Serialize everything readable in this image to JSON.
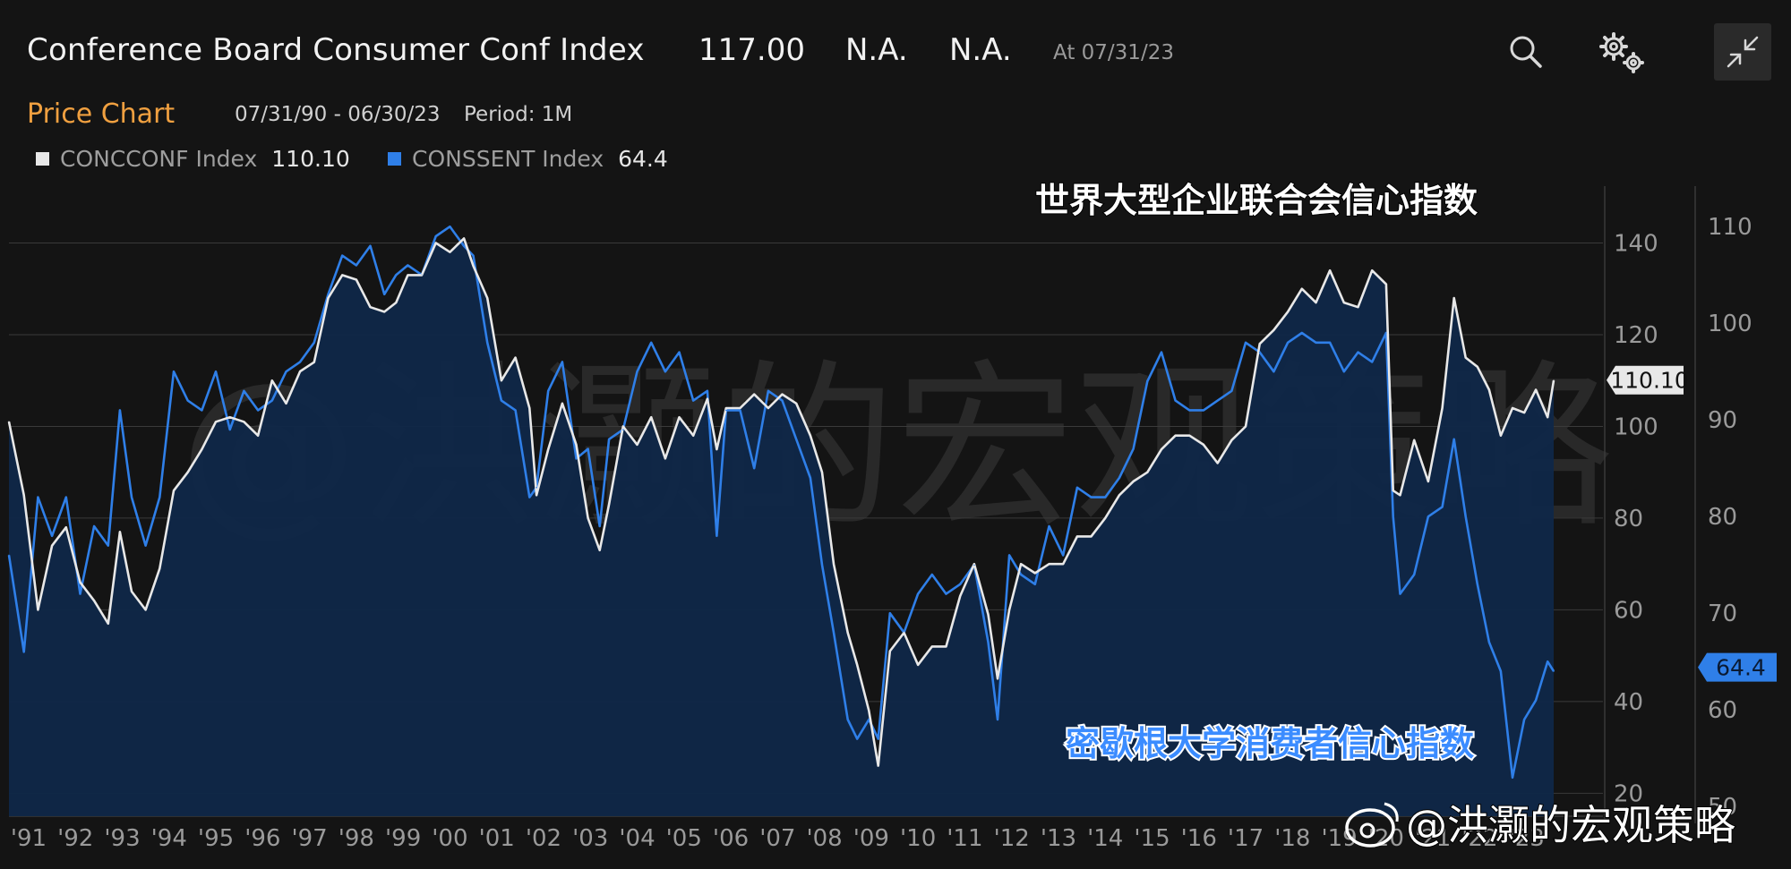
{
  "header": {
    "title": "Conference Board Consumer Conf Index",
    "last": "117.00",
    "change": "N.A.",
    "pct_change": "N.A.",
    "as_of": "At 07/31/23"
  },
  "subheader": {
    "tab": "Price Chart",
    "date_range": "07/31/90 - 06/30/23",
    "period": "Period: 1M"
  },
  "icons": {
    "search": "search-icon",
    "settings": "gear-icon",
    "collapse": "collapse-icon"
  },
  "colors": {
    "conf": "#e8e8e8",
    "sent": "#2f7fe8",
    "accent": "#f0a040",
    "area": "#0f2748"
  },
  "chart_data": {
    "type": "line",
    "left_axis": {
      "ticks": [
        20,
        40,
        60,
        80,
        100,
        120,
        140
      ],
      "range": [
        15,
        152
      ]
    },
    "right_axis": {
      "ticks": [
        50,
        60,
        70,
        80,
        90,
        100,
        110
      ],
      "range": [
        49,
        114
      ]
    },
    "x_ticks": [
      "'91",
      "'92",
      "'93",
      "'94",
      "'95",
      "'96",
      "'97",
      "'98",
      "'99",
      "'00",
      "'01",
      "'02",
      "'03",
      "'04",
      "'05",
      "'06",
      "'07",
      "'08",
      "'09",
      "'10",
      "'11",
      "'12",
      "'13",
      "'14",
      "'15",
      "'16",
      "'17",
      "'18",
      "'19",
      "'20",
      "'21",
      "'22",
      "'23"
    ],
    "series": [
      {
        "name": "CONCCONF Index",
        "last_value": "110.10",
        "axis": "left",
        "x": [
          1990.58,
          1990.9,
          1991.2,
          1991.5,
          1991.8,
          1992.1,
          1992.4,
          1992.7,
          1992.95,
          1993.2,
          1993.5,
          1993.8,
          1994.1,
          1994.4,
          1994.7,
          1995.0,
          1995.3,
          1995.6,
          1995.9,
          1996.2,
          1996.5,
          1996.8,
          1997.1,
          1997.4,
          1997.7,
          1998.0,
          1998.3,
          1998.6,
          1998.85,
          1999.1,
          1999.4,
          1999.7,
          2000.0,
          2000.3,
          2000.5,
          2000.8,
          2001.1,
          2001.4,
          2001.7,
          2001.85,
          2002.1,
          2002.4,
          2002.7,
          2002.95,
          2003.2,
          2003.4,
          2003.7,
          2004.0,
          2004.3,
          2004.6,
          2004.9,
          2005.2,
          2005.5,
          2005.7,
          2005.9,
          2006.2,
          2006.5,
          2006.8,
          2007.1,
          2007.4,
          2007.7,
          2007.95,
          2008.2,
          2008.5,
          2008.7,
          2008.95,
          2009.15,
          2009.4,
          2009.7,
          2010.0,
          2010.3,
          2010.6,
          2010.9,
          2011.2,
          2011.5,
          2011.7,
          2011.95,
          2012.2,
          2012.5,
          2012.8,
          2013.1,
          2013.4,
          2013.7,
          2014.0,
          2014.3,
          2014.6,
          2014.9,
          2015.2,
          2015.5,
          2015.8,
          2016.1,
          2016.4,
          2016.7,
          2017.0,
          2017.3,
          2017.6,
          2017.9,
          2018.2,
          2018.5,
          2018.8,
          2019.1,
          2019.4,
          2019.7,
          2020.0,
          2020.15,
          2020.3,
          2020.6,
          2020.9,
          2021.2,
          2021.45,
          2021.7,
          2021.95,
          2022.2,
          2022.45,
          2022.7,
          2022.95,
          2023.2,
          2023.45,
          2023.58
        ],
        "y": [
          101,
          85,
          60,
          74,
          78,
          66,
          62,
          57,
          77,
          64,
          60,
          69,
          86,
          90,
          95,
          101,
          102,
          101,
          98,
          110,
          105,
          112,
          114,
          128,
          133,
          132,
          126,
          125,
          127,
          133,
          133,
          140,
          138,
          141,
          135,
          128,
          110,
          115,
          104,
          85,
          95,
          105,
          96,
          80,
          73,
          83,
          100,
          96,
          102,
          93,
          102,
          98,
          106,
          95,
          104,
          104,
          107,
          104,
          107,
          105,
          98,
          90,
          70,
          55,
          48,
          38,
          26,
          51,
          55,
          48,
          52,
          52,
          63,
          70,
          59,
          45,
          60,
          70,
          68,
          70,
          70,
          76,
          76,
          80,
          85,
          88,
          90,
          95,
          98,
          98,
          96,
          92,
          97,
          100,
          118,
          121,
          125,
          130,
          127,
          134,
          127,
          126,
          134,
          131,
          86,
          85,
          97,
          88,
          104,
          128,
          115,
          113,
          108,
          98,
          104,
          103,
          108,
          102,
          110
        ]
      },
      {
        "name": "CONSSENT Index",
        "last_value": "64.4",
        "axis": "right",
        "x": [
          1990.58,
          1990.9,
          1991.2,
          1991.5,
          1991.8,
          1992.1,
          1992.4,
          1992.7,
          1992.95,
          1993.2,
          1993.5,
          1993.8,
          1994.1,
          1994.4,
          1994.7,
          1995.0,
          1995.3,
          1995.6,
          1995.9,
          1996.2,
          1996.5,
          1996.8,
          1997.1,
          1997.4,
          1997.7,
          1998.0,
          1998.3,
          1998.6,
          1998.85,
          1999.1,
          1999.4,
          1999.7,
          2000.0,
          2000.3,
          2000.5,
          2000.8,
          2001.1,
          2001.4,
          2001.7,
          2001.85,
          2002.1,
          2002.4,
          2002.7,
          2002.95,
          2003.2,
          2003.4,
          2003.7,
          2004.0,
          2004.3,
          2004.6,
          2004.9,
          2005.2,
          2005.5,
          2005.7,
          2005.9,
          2006.2,
          2006.5,
          2006.8,
          2007.1,
          2007.4,
          2007.7,
          2007.95,
          2008.2,
          2008.5,
          2008.7,
          2008.95,
          2009.15,
          2009.4,
          2009.7,
          2010.0,
          2010.3,
          2010.6,
          2010.9,
          2011.2,
          2011.5,
          2011.7,
          2011.95,
          2012.2,
          2012.5,
          2012.8,
          2013.1,
          2013.4,
          2013.7,
          2014.0,
          2014.3,
          2014.6,
          2014.9,
          2015.2,
          2015.5,
          2015.8,
          2016.1,
          2016.4,
          2016.7,
          2017.0,
          2017.3,
          2017.6,
          2017.9,
          2018.2,
          2018.5,
          2018.8,
          2019.1,
          2019.4,
          2019.7,
          2020.0,
          2020.15,
          2020.3,
          2020.6,
          2020.9,
          2021.2,
          2021.45,
          2021.7,
          2021.95,
          2022.2,
          2022.45,
          2022.7,
          2022.95,
          2023.2,
          2023.45,
          2023.58
        ],
        "y": [
          76,
          66,
          82,
          78,
          82,
          72,
          79,
          77,
          91,
          82,
          77,
          82,
          95,
          92,
          91,
          95,
          89,
          93,
          91,
          92,
          95,
          96,
          98,
          103,
          107,
          106,
          108,
          103,
          105,
          106,
          105,
          109,
          110,
          108,
          107,
          98,
          92,
          91,
          82,
          83,
          93,
          96,
          86,
          87,
          79,
          88,
          89,
          95,
          98,
          95,
          97,
          92,
          93,
          78,
          91,
          91,
          85,
          93,
          92,
          88,
          84,
          75,
          68,
          59,
          57,
          59,
          57,
          70,
          68,
          72,
          74,
          72,
          73,
          75,
          67,
          59,
          76,
          74,
          73,
          79,
          76,
          83,
          82,
          82,
          84,
          87,
          94,
          97,
          92,
          91,
          91,
          92,
          93,
          98,
          97,
          95,
          98,
          99,
          98,
          98,
          95,
          97,
          96,
          99,
          80,
          72,
          74,
          80,
          81,
          88,
          80,
          73,
          67,
          64,
          53,
          59,
          61,
          65,
          64
        ]
      }
    ],
    "annotations": {
      "conf_label": "世界大型企业联合会信心指数",
      "sent_label": "密歇根大学消费者信心指数"
    }
  },
  "watermark": {
    "text": "@洪灏的宏观策略",
    "footer": "@洪灏的宏观策略"
  }
}
